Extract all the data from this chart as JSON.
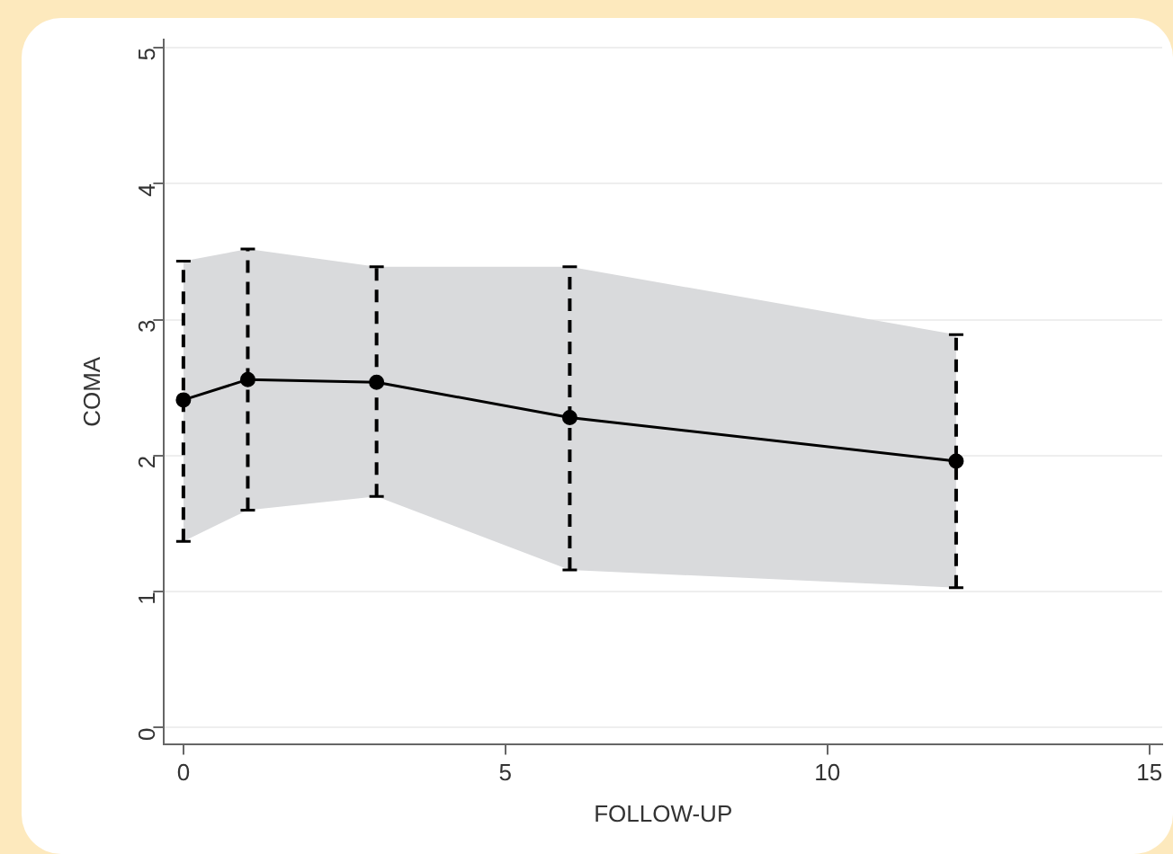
{
  "chart_data": {
    "type": "line",
    "xlabel": "FOLLOW-UP",
    "ylabel": "COMA",
    "x": [
      0,
      1,
      3,
      6,
      12
    ],
    "series": [
      {
        "color": "#000000",
        "values": [
          2.41,
          2.56,
          2.54,
          2.28,
          1.96
        ],
        "lower": [
          1.37,
          1.6,
          1.7,
          1.16,
          1.03
        ],
        "upper": [
          3.43,
          3.52,
          3.39,
          3.39,
          2.89
        ],
        "errors": [
          [
            1.37,
            3.43
          ],
          [
            1.6,
            3.52
          ],
          [
            1.7,
            3.39
          ],
          [
            1.16,
            3.39
          ],
          [
            1.03,
            2.89
          ]
        ]
      }
    ],
    "xlim": [
      -0.3,
      15.2
    ],
    "xticks": [
      0,
      5,
      10,
      15
    ],
    "ylim": [
      -0.12,
      5.06
    ],
    "yticks": [
      0,
      1,
      2,
      3,
      4,
      5
    ],
    "grid": "y",
    "marker": "circle",
    "line_style": "solid",
    "legend": false
  }
}
